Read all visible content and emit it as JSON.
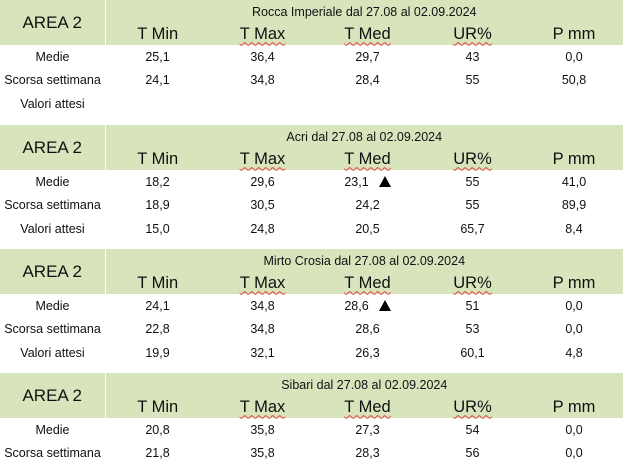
{
  "column_headers": [
    "T Min",
    "T Max",
    "T Med",
    "UR%",
    "P mm"
  ],
  "sections": [
    {
      "area": "AREA 2",
      "title": "Rocca Imperiale  dal 27.08 al 02.09.2024",
      "rows": [
        {
          "label": "Medie",
          "values": [
            "25,1",
            "36,4",
            "29,7",
            "43",
            "0,0"
          ],
          "arrow": ""
        },
        {
          "label": "Scorsa settimana",
          "values": [
            "24,1",
            "34,8",
            "28,4",
            "55",
            "50,8"
          ],
          "arrow": ""
        },
        {
          "label": "Valori attesi",
          "values": [
            "",
            "",
            "",
            "",
            ""
          ],
          "arrow": ""
        }
      ]
    },
    {
      "area": "AREA 2",
      "title": "Acri dal 27.08 al 02.09.2024",
      "rows": [
        {
          "label": "Medie",
          "values": [
            "18,2",
            "29,6",
            "23,1",
            "55",
            "41,0"
          ],
          "arrow": "up-triangle-icon"
        },
        {
          "label": "Scorsa settimana",
          "values": [
            "18,9",
            "30,5",
            "24,2",
            "55",
            "89,9"
          ],
          "arrow": ""
        },
        {
          "label": "Valori attesi",
          "values": [
            "15,0",
            "24,8",
            "20,5",
            "65,7",
            "8,4"
          ],
          "arrow": ""
        }
      ]
    },
    {
      "area": "AREA 2",
      "title": "Mirto Crosia dal 27.08 al 02.09.2024",
      "rows": [
        {
          "label": "Medie",
          "values": [
            "24,1",
            "34,8",
            "28,6",
            "51",
            "0,0"
          ],
          "arrow": "up-triangle-icon"
        },
        {
          "label": "Scorsa settimana",
          "values": [
            "22,8",
            "34,8",
            "28,6",
            "53",
            "0,0"
          ],
          "arrow": ""
        },
        {
          "label": "Valori attesi",
          "values": [
            "19,9",
            "32,1",
            "26,3",
            "60,1",
            "4,8"
          ],
          "arrow": ""
        }
      ]
    },
    {
      "area": "AREA 2",
      "title": "Sibari dal 27.08 al 02.09.2024",
      "rows": [
        {
          "label": "Medie",
          "values": [
            "20,8",
            "35,8",
            "27,3",
            "54",
            "0,0"
          ],
          "arrow": ""
        },
        {
          "label": "Scorsa settimana",
          "values": [
            "21,8",
            "35,8",
            "28,3",
            "56",
            "0,0"
          ],
          "arrow": ""
        }
      ]
    }
  ],
  "colors": {
    "header_bg": "#d8e4bc",
    "squiggle": "#e04040"
  }
}
